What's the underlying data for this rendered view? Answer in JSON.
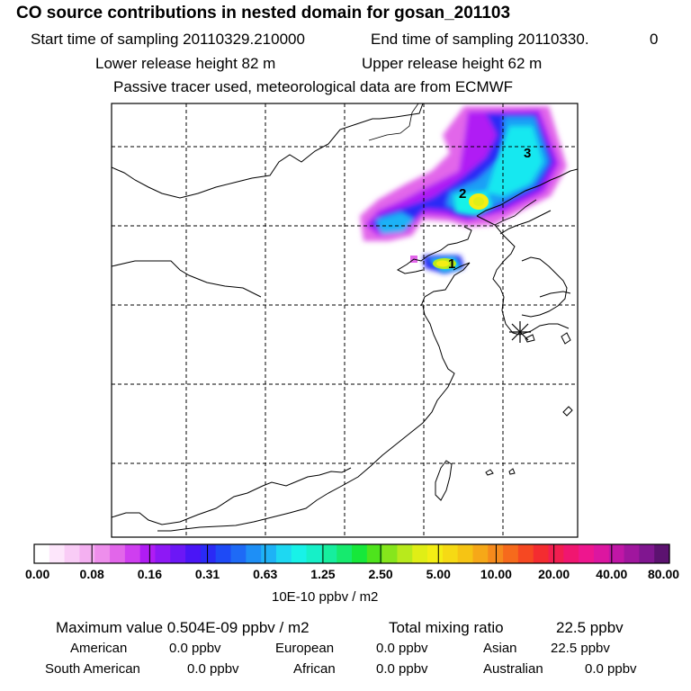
{
  "header": {
    "title": "CO  source contributions in nested domain for gosan_201103",
    "start_label": "Start time of sampling 20110329.210000",
    "end_label": "End time of sampling 20110330.",
    "end_suffix": "0",
    "lower_label": "Lower release height   82 m",
    "upper_label": "Upper release height   62 m",
    "tracer_note": "Passive tracer used, meteorological data are from ECMWF"
  },
  "map": {
    "markers": [
      "1",
      "2",
      "3"
    ],
    "receptor_icon": "asterisk-icon"
  },
  "colorbar": {
    "labels": [
      "0.00",
      "0.08",
      "0.16",
      "0.31",
      "0.63",
      "1.25",
      "2.50",
      "5.00",
      "10.00",
      "20.00",
      "40.00",
      "80.00"
    ],
    "unit": "10E-10 ppbv / m2",
    "colors": [
      "#ffffff",
      "#fde6fb",
      "#f9ccf6",
      "#f4b0f1",
      "#ee8eec",
      "#e266ea",
      "#cf3ef0",
      "#b01cf4",
      "#8e18f5",
      "#6c17f6",
      "#4a15f6",
      "#2a2af6",
      "#1e4af6",
      "#1e6af6",
      "#1e8ff6",
      "#1eb2f6",
      "#1ed8f2",
      "#18f2e8",
      "#16f0c8",
      "#16ee9e",
      "#16ea6e",
      "#16e83a",
      "#4ee41c",
      "#86e61c",
      "#b8ea1c",
      "#e0ee16",
      "#f4ee14",
      "#f6da14",
      "#f6c414",
      "#f6a818",
      "#f68a1c",
      "#f66a1c",
      "#f64822",
      "#f42c30",
      "#f21e50",
      "#f01670",
      "#ee168e",
      "#dc16a0",
      "#c016a6",
      "#a0169e",
      "#801690",
      "#5c1270"
    ]
  },
  "footer": {
    "max_label": "Maximum value  0.504E-09 ppbv / m2",
    "total_label": "Total mixing ratio",
    "total_value": "22.5 ppbv",
    "american": "American",
    "american_val": "0.0 ppbv",
    "european": "European",
    "european_val": "0.0 ppbv",
    "asian": "Asian",
    "asian_val": "22.5 ppbv",
    "south_american": "South American",
    "south_american_val": "0.0 ppbv",
    "african": "African",
    "african_val": "0.0 ppbv",
    "australian": "Australian",
    "australian_val": "0.0 ppbv"
  }
}
